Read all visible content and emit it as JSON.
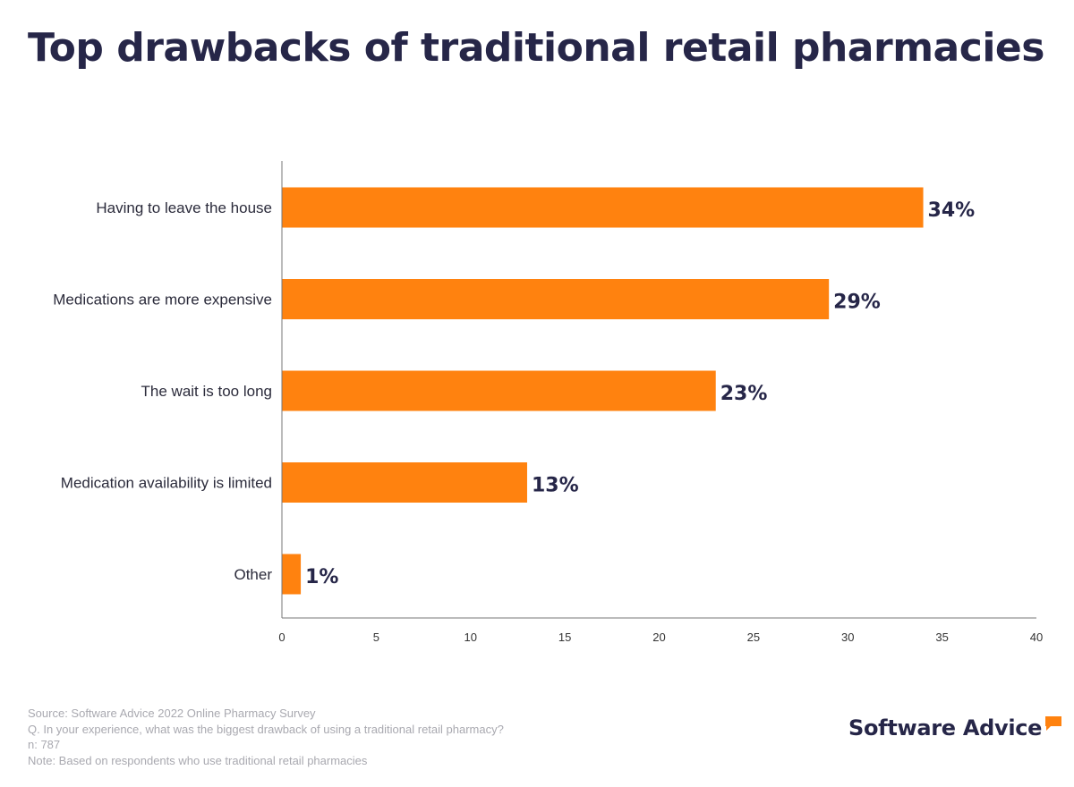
{
  "title": "Top drawbacks of traditional retail pharmacies",
  "colors": {
    "bar": "#FF820F",
    "text_dark": "#262648",
    "axis": "#777777",
    "footer": "#a9a9b0"
  },
  "chart_data": {
    "type": "bar",
    "orientation": "horizontal",
    "categories": [
      "Having to leave the house",
      "Medications are more expensive",
      "The wait is too long",
      "Medication availability is limited",
      "Other"
    ],
    "values": [
      34,
      29,
      23,
      13,
      1
    ],
    "value_labels": [
      "34%",
      "29%",
      "23%",
      "13%",
      "1%"
    ],
    "xlim": [
      0,
      40
    ],
    "xticks": [
      0,
      5,
      10,
      15,
      20,
      25,
      30,
      35,
      40
    ],
    "grid": false,
    "legend": "none"
  },
  "footer": {
    "source": "Source: Software Advice 2022 Online Pharmacy Survey",
    "question": "Q. In your experience, what was the biggest drawback of using a traditional retail pharmacy?",
    "n": "n: 787",
    "note": "Note: Based on respondents who use traditional retail pharmacies"
  },
  "brand": {
    "name": "Software Advice",
    "icon": "speech-bubble-icon"
  }
}
